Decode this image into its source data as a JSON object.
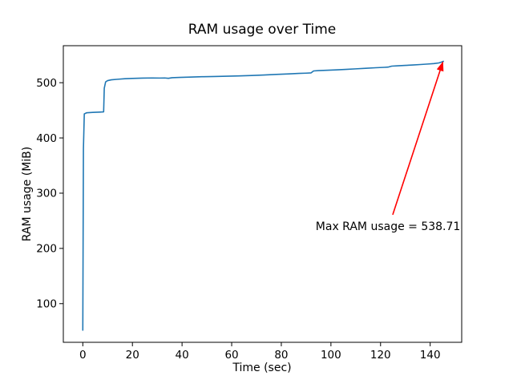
{
  "chart_data": {
    "type": "line",
    "title": "RAM usage over Time",
    "xlabel": "Time (sec)",
    "ylabel": "RAM usage (MiB)",
    "xlim": [
      -7.85,
      152.7
    ],
    "ylim": [
      30,
      567
    ],
    "xticks": [
      0,
      20,
      40,
      60,
      80,
      100,
      120,
      140
    ],
    "yticks": [
      100,
      200,
      300,
      400,
      500
    ],
    "grid": false,
    "legend_position": "none",
    "frame_color": "#000000",
    "series": [
      {
        "name": "RAM usage",
        "color": "#1f77b4",
        "x": [
          0,
          0.25,
          0.6,
          1.5,
          4,
          7,
          8.4,
          8.65,
          9.2,
          10,
          11.5,
          14,
          17,
          20,
          24,
          28,
          31,
          33,
          34.5,
          36,
          39,
          43,
          48,
          53,
          58,
          63,
          68,
          73,
          78,
          83,
          87,
          90,
          92,
          93,
          95,
          98,
          102,
          106,
          110,
          114,
          118,
          121.5,
          123,
          124.5,
          127,
          130,
          133,
          136,
          139,
          141.5,
          143.5,
          144.5,
          145.3
        ],
        "y": [
          52,
          380,
          443.5,
          445.5,
          446.2,
          446.8,
          447.2,
          490,
          501.5,
          503.8,
          505.2,
          506.2,
          507.2,
          507.8,
          508.3,
          508.6,
          508.4,
          508.6,
          507.9,
          509,
          509.6,
          510.2,
          510.8,
          511.2,
          511.7,
          512.3,
          513.1,
          514,
          515,
          516,
          516.8,
          517.3,
          517.8,
          521.3,
          521.9,
          522.4,
          523.2,
          524.1,
          525.1,
          526.1,
          527.1,
          527.8,
          528.2,
          530,
          530.6,
          531.3,
          532.1,
          532.9,
          533.8,
          534.6,
          535.8,
          537.2,
          538.71
        ]
      }
    ],
    "annotation": {
      "text": "Max RAM usage = 538.71",
      "color": "#ff0000",
      "text_center_xy": [
        123,
        233.2
      ],
      "arrow_tail_xy": [
        124.9,
        261
      ],
      "arrow_tip_xy": [
        145.1,
        537.2
      ]
    }
  }
}
